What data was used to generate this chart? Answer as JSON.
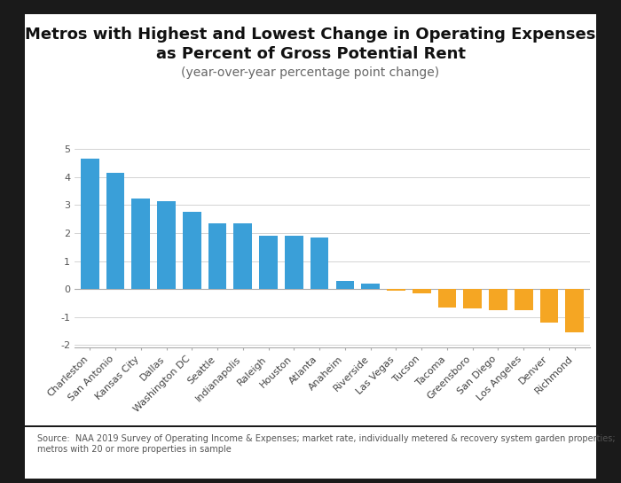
{
  "title_line1": "Metros with Highest and Lowest Change in Operating Expenses",
  "title_line2": "as Percent of Gross Potential Rent",
  "subtitle": "(year-over-year percentage point change)",
  "categories": [
    "Charleston",
    "San Antonio",
    "Kansas City",
    "Dallas",
    "Washington DC",
    "Seattle",
    "Indianapolis",
    "Raleigh",
    "Houston",
    "Atlanta",
    "Anaheim",
    "Riverside",
    "Las Vegas",
    "Tucson",
    "Tacoma",
    "Greensboro",
    "San Diego",
    "Los Angeles",
    "Denver",
    "Richmond"
  ],
  "values": [
    4.65,
    4.15,
    3.25,
    3.15,
    2.75,
    2.35,
    2.35,
    1.9,
    1.9,
    1.85,
    0.3,
    0.2,
    -0.05,
    -0.15,
    -0.65,
    -0.7,
    -0.75,
    -0.75,
    -1.2,
    -1.55
  ],
  "colors_positive": "#3a9fd8",
  "colors_negative": "#f5a623",
  "ylim": [
    -2.1,
    5.5
  ],
  "yticks": [
    -2,
    -1,
    0,
    1,
    2,
    3,
    4,
    5
  ],
  "source_text": "Source:  NAA 2019 Survey of Operating Income & Expenses; market rate, individually metered & recovery system garden properties;\nmetros with 20 or more properties in sample",
  "outer_bg": "#1a1a1a",
  "inner_bg": "#ffffff",
  "title_fontsize": 13,
  "subtitle_fontsize": 10,
  "tick_label_fontsize": 8,
  "source_fontsize": 7
}
